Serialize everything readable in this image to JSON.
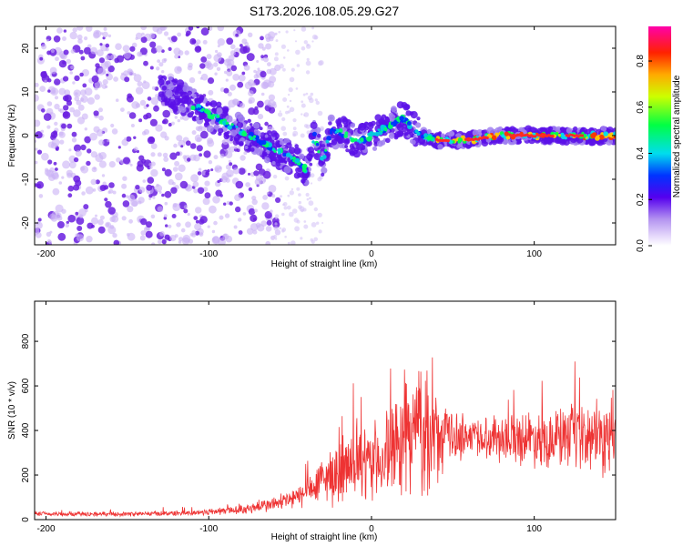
{
  "title": "S173.2026.108.05.29.G27",
  "chart_data": [
    {
      "type": "heatmap",
      "name": "spectrogram",
      "xlabel": "Height of straight line (km)",
      "ylabel": "Frequency (Hz)",
      "xlim": [
        -207,
        150
      ],
      "ylim": [
        -25,
        25
      ],
      "xticks": [
        -200,
        -100,
        0,
        100
      ],
      "yticks": [
        -20,
        -10,
        0,
        10,
        20
      ],
      "trace": {
        "x": [
          -125,
          -115,
          -105,
          -95,
          -85,
          -75,
          -65,
          -55,
          -45,
          -40,
          -35,
          -30,
          -25,
          -20,
          -15,
          -10,
          -5,
          0,
          5,
          10,
          15,
          20,
          25,
          30,
          40,
          60,
          80,
          100,
          120,
          140,
          150
        ],
        "freq": [
          10,
          8,
          6,
          4,
          2,
          0,
          -2,
          -4,
          -6,
          -8,
          0,
          -6,
          1,
          1,
          0,
          -1,
          -1,
          0,
          1,
          2,
          3,
          4,
          2,
          0,
          -1,
          -1,
          0,
          0,
          0,
          0,
          0
        ]
      },
      "colorbar": {
        "label": "Normalized spectral amplitude",
        "range": [
          0,
          0.95
        ],
        "ticks": [
          "0.0",
          "0.2",
          "0.4",
          "0.6",
          "0.8"
        ]
      }
    },
    {
      "type": "line",
      "name": "snr",
      "xlabel": "Height of straight line (km)",
      "ylabel": "SNR (10 * v/v)",
      "xlim": [
        -207,
        150
      ],
      "ylim": [
        0,
        980
      ],
      "xticks": [
        -200,
        -100,
        0,
        100
      ],
      "yticks": [
        0,
        200,
        400,
        600,
        800
      ],
      "color": "#ee3333",
      "envelope": {
        "x": [
          -207,
          -150,
          -110,
          -80,
          -60,
          -45,
          -35,
          -25,
          -15,
          -5,
          5,
          15,
          22,
          30,
          35,
          42,
          50,
          70,
          100,
          130,
          150
        ],
        "mean": [
          25,
          25,
          30,
          45,
          70,
          100,
          150,
          200,
          220,
          240,
          270,
          320,
          380,
          420,
          380,
          350,
          380,
          370,
          370,
          360,
          360
        ],
        "amp": [
          12,
          12,
          15,
          25,
          40,
          60,
          100,
          150,
          180,
          190,
          210,
          260,
          300,
          350,
          300,
          200,
          130,
          110,
          150,
          180,
          200
        ]
      }
    }
  ]
}
